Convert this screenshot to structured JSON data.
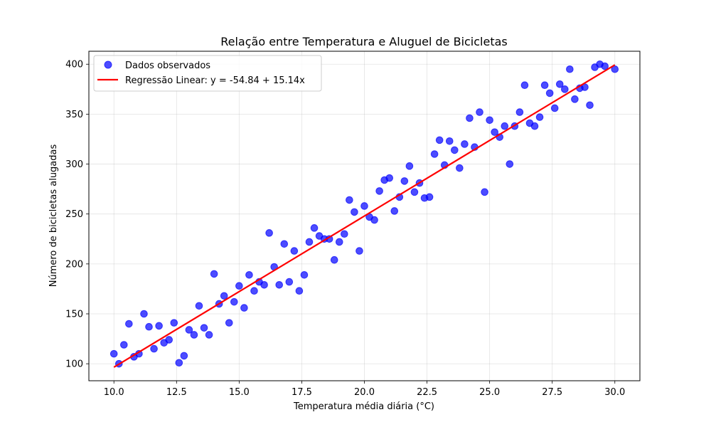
{
  "chart_data": {
    "type": "scatter",
    "title": "Relação entre Temperatura e Aluguel de Bicicletas",
    "xlabel": "Temperatura média diária (°C)",
    "ylabel": "Número de bicicletas alugadas",
    "xlim": [
      9.0,
      31.0
    ],
    "ylim": [
      83,
      413
    ],
    "xticks": [
      10.0,
      12.5,
      15.0,
      17.5,
      20.0,
      22.5,
      25.0,
      27.5,
      30.0
    ],
    "xtick_labels": [
      "10.0",
      "12.5",
      "15.0",
      "17.5",
      "20.0",
      "22.5",
      "25.0",
      "27.5",
      "30.0"
    ],
    "yticks": [
      100,
      150,
      200,
      250,
      300,
      350,
      400
    ],
    "ytick_labels": [
      "100",
      "150",
      "200",
      "250",
      "300",
      "350",
      "400"
    ],
    "grid": true,
    "legend_position": "upper-left",
    "series": [
      {
        "name": "Dados observados",
        "kind": "scatter",
        "color": "#0000ff",
        "points": [
          [
            10.0,
            110
          ],
          [
            10.2,
            100
          ],
          [
            10.4,
            119
          ],
          [
            10.6,
            140
          ],
          [
            10.8,
            107
          ],
          [
            11.0,
            110
          ],
          [
            11.2,
            150
          ],
          [
            11.4,
            137
          ],
          [
            11.6,
            115
          ],
          [
            11.8,
            138
          ],
          [
            12.0,
            121
          ],
          [
            12.2,
            124
          ],
          [
            12.4,
            141
          ],
          [
            12.6,
            101
          ],
          [
            12.8,
            108
          ],
          [
            13.0,
            134
          ],
          [
            13.2,
            129
          ],
          [
            13.4,
            158
          ],
          [
            13.6,
            136
          ],
          [
            13.8,
            129
          ],
          [
            14.0,
            190
          ],
          [
            14.2,
            160
          ],
          [
            14.4,
            168
          ],
          [
            14.6,
            141
          ],
          [
            14.8,
            162
          ],
          [
            15.0,
            178
          ],
          [
            15.2,
            156
          ],
          [
            15.4,
            189
          ],
          [
            15.6,
            173
          ],
          [
            15.8,
            182
          ],
          [
            16.0,
            179
          ],
          [
            16.2,
            231
          ],
          [
            16.4,
            197
          ],
          [
            16.6,
            179
          ],
          [
            16.8,
            220
          ],
          [
            17.0,
            182
          ],
          [
            17.2,
            213
          ],
          [
            17.4,
            173
          ],
          [
            17.6,
            189
          ],
          [
            17.8,
            222
          ],
          [
            18.0,
            236
          ],
          [
            18.2,
            228
          ],
          [
            18.4,
            225
          ],
          [
            18.6,
            225
          ],
          [
            18.8,
            204
          ],
          [
            19.0,
            222
          ],
          [
            19.2,
            230
          ],
          [
            19.4,
            264
          ],
          [
            19.6,
            252
          ],
          [
            19.8,
            213
          ],
          [
            20.0,
            258
          ],
          [
            20.2,
            247
          ],
          [
            20.4,
            244
          ],
          [
            20.6,
            273
          ],
          [
            20.8,
            284
          ],
          [
            21.0,
            286
          ],
          [
            21.2,
            253
          ],
          [
            21.4,
            267
          ],
          [
            21.6,
            283
          ],
          [
            21.8,
            298
          ],
          [
            22.0,
            272
          ],
          [
            22.2,
            281
          ],
          [
            22.4,
            266
          ],
          [
            22.6,
            267
          ],
          [
            22.8,
            310
          ],
          [
            23.0,
            324
          ],
          [
            23.2,
            299
          ],
          [
            23.4,
            323
          ],
          [
            23.6,
            314
          ],
          [
            23.8,
            296
          ],
          [
            24.0,
            320
          ],
          [
            24.2,
            346
          ],
          [
            24.4,
            317
          ],
          [
            24.6,
            352
          ],
          [
            24.8,
            272
          ],
          [
            25.0,
            344
          ],
          [
            25.2,
            332
          ],
          [
            25.4,
            327
          ],
          [
            25.6,
            338
          ],
          [
            25.8,
            300
          ],
          [
            26.0,
            338
          ],
          [
            26.2,
            352
          ],
          [
            26.4,
            379
          ],
          [
            26.6,
            341
          ],
          [
            26.8,
            338
          ],
          [
            27.0,
            347
          ],
          [
            27.2,
            379
          ],
          [
            27.4,
            371
          ],
          [
            27.6,
            356
          ],
          [
            27.8,
            380
          ],
          [
            28.0,
            375
          ],
          [
            28.2,
            395
          ],
          [
            28.4,
            365
          ],
          [
            28.6,
            376
          ],
          [
            28.8,
            377
          ],
          [
            29.0,
            359
          ],
          [
            29.2,
            397
          ],
          [
            29.4,
            400
          ],
          [
            29.6,
            398
          ],
          [
            30.0,
            395
          ]
        ]
      },
      {
        "name": "Regressão Linear: y = -54.84 + 15.14x",
        "kind": "line",
        "color": "#ff0000",
        "intercept": -54.84,
        "slope": 15.14,
        "x_range": [
          10.0,
          30.0
        ]
      }
    ]
  }
}
